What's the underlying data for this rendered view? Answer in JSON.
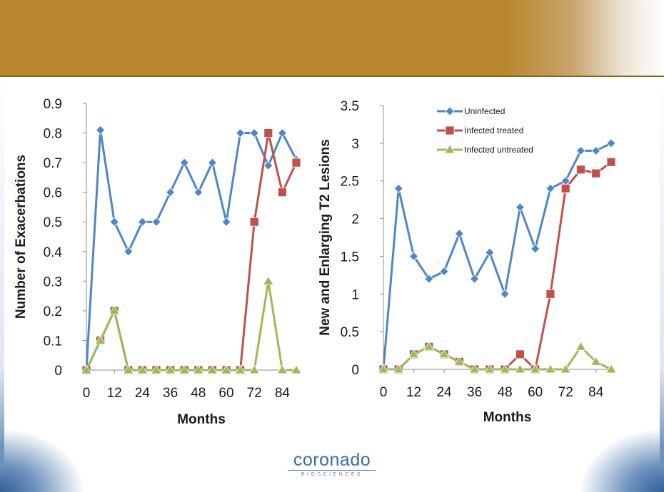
{
  "colors": {
    "uninfected": "#4f86c6",
    "infected_treated": "#c0504d",
    "infected_untreated": "#9bbb59",
    "header": "#b8862c",
    "brand_blue": "#3f6aa0"
  },
  "logo": {
    "word": "coronado",
    "sub": "BIOSCIENCES"
  },
  "chart_data": [
    {
      "type": "line",
      "title": "",
      "xlabel": "Months",
      "ylabel": "Number of Exacerbations",
      "xlim": [
        0,
        90
      ],
      "ylim": [
        0,
        0.9
      ],
      "x_ticks": [
        "0",
        "12",
        "24",
        "36",
        "48",
        "60",
        "72",
        "84"
      ],
      "y_ticks": [
        "0",
        "0.1",
        "0.2",
        "0.3",
        "0.4",
        "0.5",
        "0.6",
        "0.7",
        "0.8",
        "0.9"
      ],
      "grid": false,
      "legend": "none",
      "x": [
        0,
        6,
        12,
        18,
        24,
        30,
        36,
        42,
        48,
        54,
        60,
        66,
        72,
        78,
        84,
        90
      ],
      "series": [
        {
          "key": "uninfected",
          "marker": "diamond",
          "values": [
            0,
            0.81,
            0.5,
            0.4,
            0.5,
            0.5,
            0.6,
            0.7,
            0.6,
            0.7,
            0.5,
            0.8,
            0.8,
            0.69,
            0.8,
            0.71
          ]
        },
        {
          "key": "infected_treated",
          "marker": "square",
          "values": [
            0,
            0.1,
            0.2,
            0,
            0,
            0,
            0,
            0,
            0,
            0,
            0,
            0,
            0.5,
            0.8,
            0.6,
            0.7
          ]
        },
        {
          "key": "infected_untreated",
          "marker": "triangle",
          "values": [
            0,
            0.1,
            0.2,
            0,
            0,
            0,
            0,
            0,
            0,
            0,
            0,
            0,
            0,
            0.3,
            0,
            0
          ]
        }
      ]
    },
    {
      "type": "line",
      "title": "",
      "xlabel": "Months",
      "ylabel": "New and Enlarging T2 Lesions",
      "xlim": [
        0,
        90
      ],
      "ylim": [
        0,
        3.5
      ],
      "x_ticks": [
        "0",
        "12",
        "24",
        "36",
        "48",
        "60",
        "72",
        "84"
      ],
      "y_ticks": [
        "0",
        "0.5",
        "1",
        "1.5",
        "2",
        "2.5",
        "3",
        "3.5"
      ],
      "grid": false,
      "legend": "top-center",
      "x": [
        0,
        6,
        12,
        18,
        24,
        30,
        36,
        42,
        48,
        54,
        60,
        66,
        72,
        78,
        84,
        90
      ],
      "series": [
        {
          "key": "uninfected",
          "name": "Uninfected",
          "marker": "diamond",
          "values": [
            0,
            2.4,
            1.5,
            1.2,
            1.3,
            1.8,
            1.2,
            1.55,
            1.0,
            2.15,
            1.6,
            2.4,
            2.5,
            2.9,
            2.9,
            3.0
          ]
        },
        {
          "key": "infected_treated",
          "name": "Infected treated",
          "marker": "square",
          "values": [
            0,
            0,
            0.2,
            0.3,
            0.2,
            0.1,
            0,
            0,
            0,
            0.2,
            0,
            1.0,
            2.4,
            2.65,
            2.6,
            2.75
          ]
        },
        {
          "key": "infected_untreated",
          "name": "Infected untreated",
          "marker": "triangle",
          "values": [
            0,
            0,
            0.2,
            0.3,
            0.2,
            0.1,
            0,
            0,
            0,
            0,
            0,
            0,
            0,
            0.3,
            0.1,
            0
          ]
        }
      ]
    }
  ]
}
